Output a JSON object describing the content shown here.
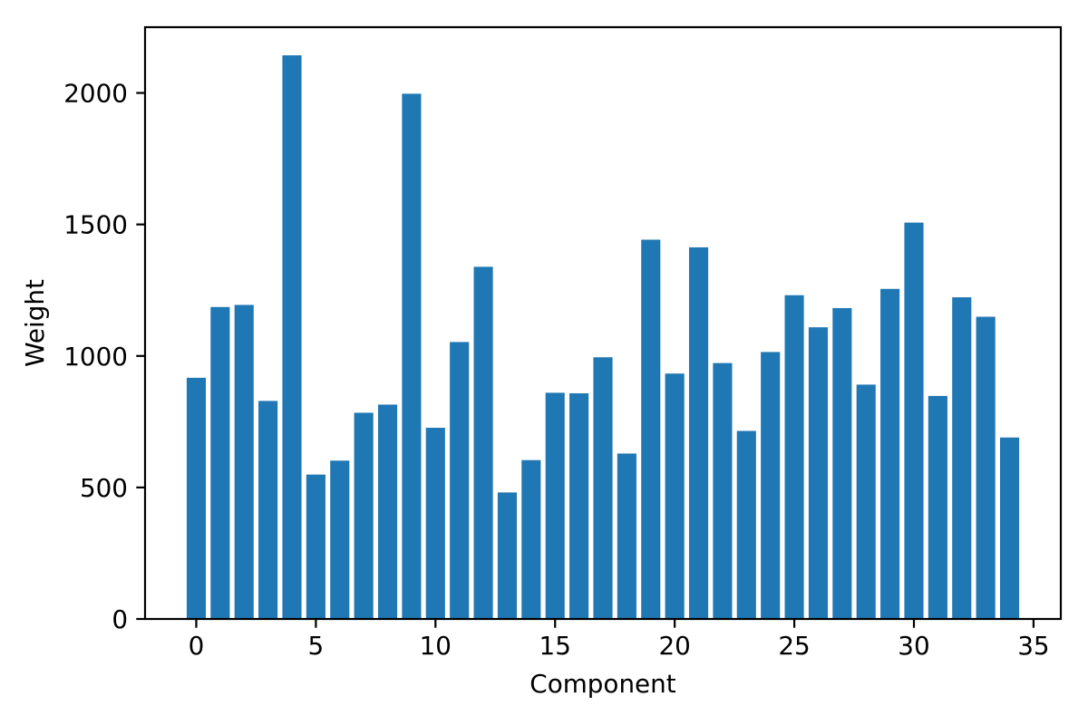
{
  "chart_data": {
    "type": "bar",
    "title": "",
    "xlabel": "Component",
    "ylabel": "Weight",
    "categories": [
      0,
      1,
      2,
      3,
      4,
      5,
      6,
      7,
      8,
      9,
      10,
      11,
      12,
      13,
      14,
      15,
      16,
      17,
      18,
      19,
      20,
      21,
      22,
      23,
      24,
      25,
      26,
      27,
      28,
      29,
      30,
      31,
      32,
      33,
      34
    ],
    "values": [
      917,
      1186,
      1194,
      829,
      2143,
      549,
      602,
      784,
      815,
      1997,
      727,
      1053,
      1339,
      481,
      604,
      860,
      858,
      995,
      629,
      1442,
      933,
      1413,
      973,
      715,
      1015,
      1231,
      1109,
      1182,
      891,
      1255,
      1507,
      848,
      1223,
      1149,
      690
    ],
    "bar_color": "#1f77b4",
    "bar_width": 0.8,
    "xlim": [
      -2.14,
      36.14
    ],
    "ylim": [
      0,
      2250
    ],
    "xticks": [
      0,
      5,
      10,
      15,
      20,
      25,
      30,
      35
    ],
    "yticks": [
      0,
      500,
      1000,
      1500,
      2000
    ],
    "grid": false,
    "legend": null,
    "background_color": "#ffffff",
    "spine_color": "#000000",
    "text_color": "#000000"
  }
}
